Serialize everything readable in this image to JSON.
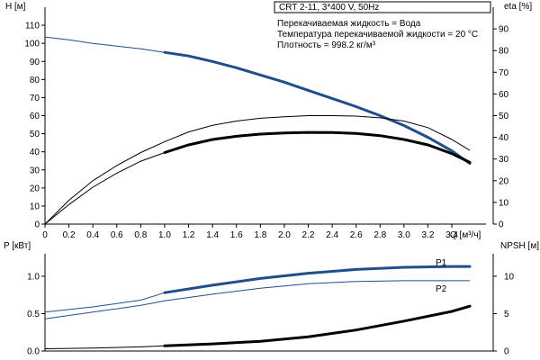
{
  "header": {
    "pump": "CRT 2-11, 3*400 V, 50Hz",
    "info": [
      "Перекачиваемая жидкость = Вода",
      "Температура перекачиваемой жидкости = 20 °C",
      "Плотность = 998.2 кг/м³"
    ]
  },
  "chart_data": [
    {
      "type": "line",
      "panel": "head-efficiency",
      "xlabel": "Q [м³/ч]",
      "ylabel": "H [м]",
      "ylabel_right": "eta [%]",
      "xlim": [
        0,
        3.55
      ],
      "ylim": [
        0,
        120
      ],
      "ylim_right": [
        0,
        100
      ],
      "xticks": [
        0,
        0.2,
        0.4,
        0.6,
        0.8,
        1.0,
        1.2,
        1.4,
        1.6,
        1.8,
        2.0,
        2.2,
        2.4,
        2.6,
        2.8,
        3.0,
        3.2,
        3.4
      ],
      "xtick_labels": [
        "0",
        "0.2",
        "0.4",
        "0.6",
        "0.8",
        "1.0",
        "1.2",
        "1.4",
        "1.6",
        "1.8",
        "2.0",
        "2.2",
        "2.4",
        "2.6",
        "2.8",
        "3.0",
        "3.2",
        "3.4"
      ],
      "yticks": [
        0,
        10,
        20,
        30,
        40,
        50,
        60,
        70,
        80,
        90,
        100,
        110
      ],
      "ytick_labels": [
        "0",
        "10",
        "20",
        "30",
        "40",
        "50",
        "60",
        "70",
        "80",
        "90",
        "100",
        "110"
      ],
      "yticks_right": [
        0,
        10,
        20,
        30,
        40,
        50,
        60,
        70,
        80,
        90
      ],
      "ytick_labels_right": [
        "0",
        "10",
        "20",
        "30",
        "40",
        "50",
        "60",
        "70",
        "80",
        "90"
      ],
      "series": [
        {
          "id": "H",
          "axis": "left",
          "color": "#1f4e8c",
          "x": [
            0,
            0.2,
            0.4,
            0.6,
            0.8,
            1.0,
            1.2,
            1.4,
            1.6,
            1.8,
            2.0,
            2.2,
            2.4,
            2.6,
            2.8,
            3.0,
            3.2,
            3.4,
            3.55
          ],
          "y": [
            103.5,
            102,
            100,
            98.5,
            97,
            95,
            93,
            90,
            86.5,
            82.5,
            78.5,
            74,
            69.5,
            65,
            60,
            54.5,
            48,
            40.5,
            33.5
          ],
          "bold_from": 1.0
        },
        {
          "id": "eta-1",
          "axis": "right",
          "color": "#000000",
          "x": [
            0,
            0.2,
            0.4,
            0.6,
            0.8,
            1.0,
            1.2,
            1.4,
            1.6,
            1.8,
            2.0,
            2.2,
            2.4,
            2.6,
            2.8,
            3.0,
            3.2,
            3.4,
            3.55
          ],
          "y": [
            0,
            11,
            20,
            27,
            33,
            38,
            42.5,
            45.5,
            47.5,
            48.8,
            49.5,
            50,
            50,
            49.8,
            49,
            47.5,
            44.5,
            39,
            34
          ],
          "bold_from": null
        },
        {
          "id": "eta-2",
          "axis": "right",
          "color": "#000000",
          "x": [
            0,
            0.2,
            0.4,
            0.6,
            0.8,
            1.0,
            1.2,
            1.4,
            1.6,
            1.8,
            2.0,
            2.2,
            2.4,
            2.6,
            2.8,
            3.0,
            3.2,
            3.4,
            3.55
          ],
          "y": [
            0,
            9,
            17,
            23.5,
            29,
            33,
            36.5,
            39,
            40.5,
            41.5,
            42,
            42.3,
            42.2,
            41.8,
            40.8,
            39,
            36.5,
            32.5,
            28.5
          ],
          "bold_from": 1.0
        }
      ]
    },
    {
      "type": "line",
      "panel": "power-npsh",
      "ylabel": "P [кВт]",
      "ylabel_right": "NPSH [м]",
      "xlim": [
        0,
        3.55
      ],
      "ylim": [
        0,
        1.3
      ],
      "ylim_right": [
        0,
        13
      ],
      "yticks": [
        0,
        0.5,
        1.0
      ],
      "ytick_labels": [
        "0.0",
        "0.5",
        "1.0"
      ],
      "yticks_right": [
        0,
        5,
        10
      ],
      "ytick_labels_right": [
        "0",
        "5",
        "10"
      ],
      "series": [
        {
          "name": "P1",
          "axis": "left",
          "color": "#1f4e8c",
          "x": [
            0,
            0.4,
            0.8,
            1.0,
            1.4,
            1.8,
            2.2,
            2.6,
            3.0,
            3.4,
            3.55
          ],
          "y": [
            0.52,
            0.59,
            0.68,
            0.78,
            0.88,
            0.97,
            1.04,
            1.09,
            1.12,
            1.13,
            1.13
          ],
          "bold_from": 1.0
        },
        {
          "name": "P2",
          "axis": "left",
          "color": "#1f4e8c",
          "x": [
            0,
            0.4,
            0.8,
            1.0,
            1.4,
            1.8,
            2.2,
            2.6,
            3.0,
            3.4,
            3.55
          ],
          "y": [
            0.43,
            0.52,
            0.61,
            0.67,
            0.76,
            0.84,
            0.9,
            0.93,
            0.94,
            0.94,
            0.94
          ],
          "bold_from": null
        },
        {
          "id": "NPSH",
          "axis": "right",
          "color": "#000000",
          "x": [
            0,
            0.4,
            0.8,
            1.0,
            1.4,
            1.8,
            2.2,
            2.6,
            3.0,
            3.4,
            3.55
          ],
          "y": [
            0.3,
            0.4,
            0.55,
            0.7,
            0.95,
            1.3,
            1.9,
            2.8,
            4.0,
            5.3,
            6.0
          ],
          "bold_from": 1.0
        }
      ]
    }
  ]
}
